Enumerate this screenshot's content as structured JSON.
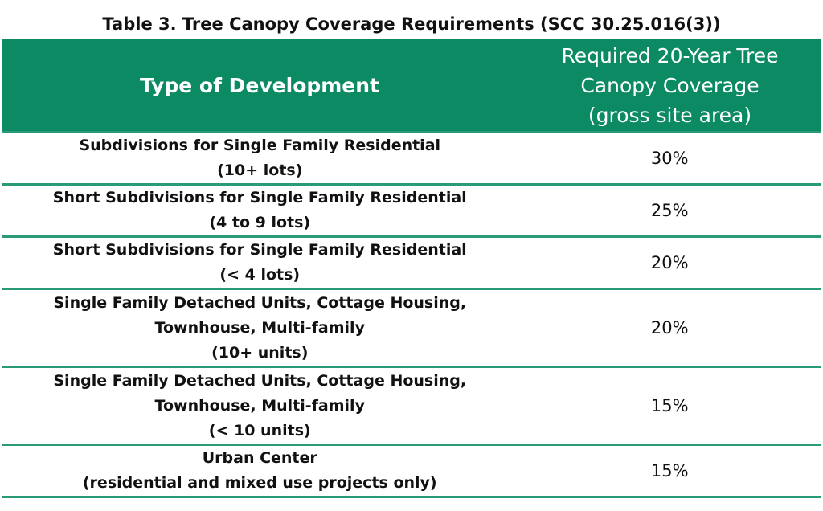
{
  "title": "Table 3. Tree Canopy Coverage Requirements (SCC 30.25.016(3))",
  "headers": {
    "type": "Type of Development",
    "coverage_lines": [
      "Required 20-Year Tree",
      "Canopy Coverage",
      "(gross site area)"
    ]
  },
  "rows": [
    {
      "lines": [
        "Subdivisions for Single Family Residential",
        "(10+ lots)"
      ],
      "value": "30%"
    },
    {
      "lines": [
        "Short Subdivisions for Single Family Residential",
        "(4 to 9 lots)"
      ],
      "value": "25%"
    },
    {
      "lines": [
        "Short Subdivisions for Single Family Residential",
        "(< 4 lots)"
      ],
      "value": "20%"
    },
    {
      "lines": [
        "Single Family Detached Units, Cottage Housing,",
        "Townhouse, Multi-family",
        "(10+ units)"
      ],
      "value": "20%"
    },
    {
      "lines": [
        "Single Family Detached Units, Cottage Housing,",
        "Townhouse, Multi-family",
        "(< 10 units)"
      ],
      "value": "15%"
    },
    {
      "lines": [
        "Urban Center",
        "(residential and mixed use projects only)"
      ],
      "value": "15%"
    }
  ],
  "colors": {
    "header": "#0c8a63",
    "rule": "#2a9a78"
  }
}
